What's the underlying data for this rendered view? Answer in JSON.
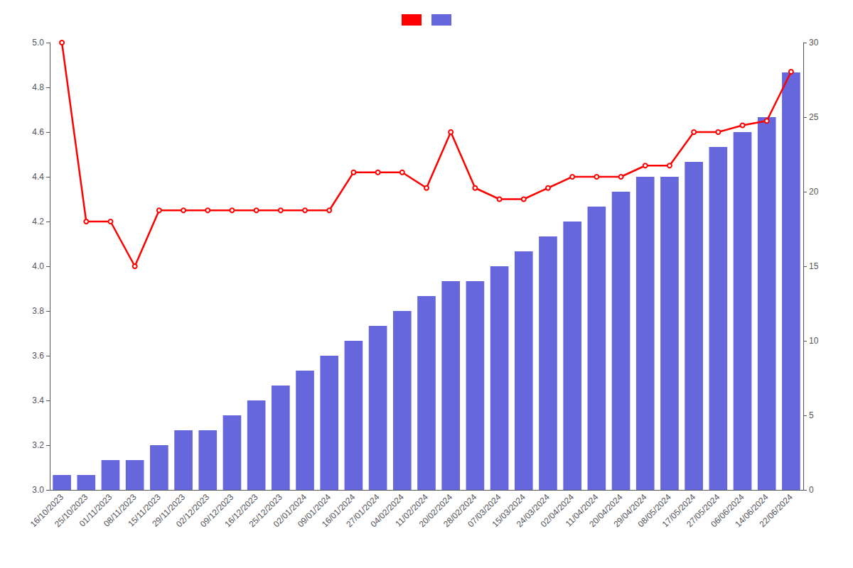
{
  "chart_data": {
    "type": "bar",
    "categories": [
      "16/10/2023",
      "25/10/2023",
      "01/11/2023",
      "08/11/2023",
      "15/11/2023",
      "29/11/2023",
      "02/12/2023",
      "09/12/2023",
      "16/12/2023",
      "25/12/2023",
      "02/01/2024",
      "09/01/2024",
      "16/01/2024",
      "27/01/2024",
      "04/02/2024",
      "11/02/2024",
      "20/02/2024",
      "28/02/2024",
      "07/03/2024",
      "15/03/2024",
      "24/03/2024",
      "02/04/2024",
      "11/04/2024",
      "20/04/2024",
      "29/04/2024",
      "08/05/2024",
      "17/05/2024",
      "27/05/2024",
      "06/06/2024",
      "14/06/2024",
      "22/06/2024"
    ],
    "series": [
      {
        "type": "line",
        "axis": "y",
        "color": "#ff0000",
        "values": [
          5.0,
          4.2,
          4.2,
          4.0,
          4.25,
          4.25,
          4.25,
          4.25,
          4.25,
          4.25,
          4.25,
          4.25,
          4.42,
          4.42,
          4.42,
          4.35,
          4.6,
          4.35,
          4.3,
          4.3,
          4.35,
          4.4,
          4.4,
          4.4,
          4.45,
          4.45,
          4.6,
          4.6,
          4.63,
          4.65,
          4.87
        ]
      },
      {
        "type": "bar",
        "axis": "y2",
        "color": "#6666dd",
        "values": [
          1,
          1,
          2,
          2,
          3,
          4,
          4,
          5,
          6,
          7,
          8,
          9,
          10,
          11,
          12,
          13,
          14,
          14,
          15,
          16,
          17,
          18,
          19,
          20,
          21,
          21,
          22,
          23,
          24,
          25,
          28
        ]
      }
    ],
    "ylim": [
      3.0,
      5.0
    ],
    "yticks": [
      {
        "value": 3.0,
        "label": "3.0"
      },
      3.2,
      3.4,
      3.6,
      3.8,
      {
        "value": 4.0,
        "label": "4.0"
      },
      4.2,
      4.4,
      4.6,
      4.8,
      {
        "value": 5.0,
        "label": "5.0"
      }
    ],
    "y2lim": [
      0,
      30
    ],
    "y2ticks": [
      0,
      5,
      10,
      15,
      20,
      25,
      30
    ],
    "grid": false,
    "legend": "top"
  }
}
